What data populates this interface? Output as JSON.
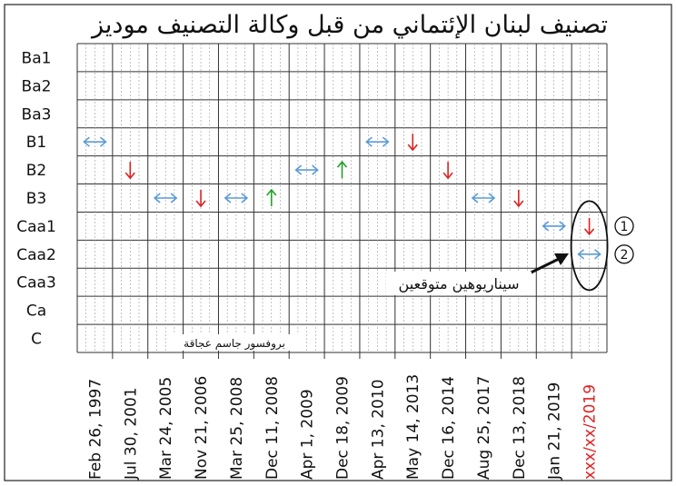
{
  "chart_data": {
    "type": "table",
    "title": "تصنيف لبنان الإئتماني من قبل وكالة التصنيف موديز",
    "ratings": [
      "Ba1",
      "Ba2",
      "Ba3",
      "B1",
      "B2",
      "B3",
      "Caa1",
      "Caa2",
      "Caa3",
      "Ca",
      "C"
    ],
    "dates": [
      "Feb 26, 1997",
      "Jul 30, 2001",
      "Mar 24, 2005",
      "Nov 21, 2006",
      "Mar 25, 2008",
      "Dec 11, 2008",
      "Apr 1, 2009",
      "Dec 18, 2009",
      "Apr 13, 2010",
      "May 14, 2013",
      "Dec 16, 2014",
      "Aug 25, 2017",
      "Dec 13, 2018",
      "Jan 21, 2019",
      "xxx/xx/2019"
    ],
    "highlight_date_color": "#e02020",
    "actions": [
      {
        "date": "Feb 26, 1997",
        "rating": "B1",
        "outlook": "stable"
      },
      {
        "date": "Jul 30, 2001",
        "rating": "B2",
        "outlook": "down"
      },
      {
        "date": "Mar 24, 2005",
        "rating": "B3",
        "outlook": "stable"
      },
      {
        "date": "Nov 21, 2006",
        "rating": "B3",
        "outlook": "down"
      },
      {
        "date": "Mar 25, 2008",
        "rating": "B3",
        "outlook": "stable"
      },
      {
        "date": "Dec 11, 2008",
        "rating": "B3",
        "outlook": "up"
      },
      {
        "date": "Apr 1, 2009",
        "rating": "B2",
        "outlook": "stable"
      },
      {
        "date": "Dec 18, 2009",
        "rating": "B2",
        "outlook": "up"
      },
      {
        "date": "Apr 13, 2010",
        "rating": "B1",
        "outlook": "stable"
      },
      {
        "date": "May 14, 2013",
        "rating": "B1",
        "outlook": "down"
      },
      {
        "date": "Dec 16, 2014",
        "rating": "B2",
        "outlook": "down"
      },
      {
        "date": "Aug 25, 2017",
        "rating": "B3",
        "outlook": "stable"
      },
      {
        "date": "Dec 13, 2018",
        "rating": "B3",
        "outlook": "down"
      },
      {
        "date": "Jan 21, 2019",
        "rating": "Caa1",
        "outlook": "stable"
      },
      {
        "date": "xxx/xx/2019",
        "rating": "Caa1",
        "outlook": "down",
        "scenario": "1"
      },
      {
        "date": "xxx/xx/2019",
        "rating": "Caa2",
        "outlook": "stable",
        "scenario": "2"
      }
    ],
    "outlook_colors": {
      "stable": "#5b9bd5",
      "down": "#e02020",
      "up": "#22a02a"
    },
    "annotations": {
      "scenarios_label": "سيناريوهين متوقعين",
      "scenario_numbers": [
        "1",
        "2"
      ],
      "credit": "بروفسور جاسم عجاقة"
    },
    "grid": true
  }
}
